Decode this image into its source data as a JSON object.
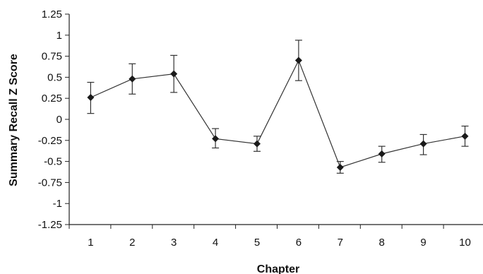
{
  "chart_data": {
    "type": "line",
    "title": "",
    "xlabel": "Chapter",
    "ylabel": "Summary Recall Z Score",
    "categories": [
      "1",
      "2",
      "3",
      "4",
      "5",
      "6",
      "7",
      "8",
      "9",
      "10"
    ],
    "series": [
      {
        "values": [
          0.26,
          0.48,
          0.54,
          -0.23,
          -0.29,
          0.7,
          -0.57,
          -0.41,
          -0.29,
          -0.2
        ],
        "error_upper": [
          0.44,
          0.66,
          0.76,
          -0.11,
          -0.2,
          0.94,
          -0.5,
          -0.32,
          -0.18,
          -0.08
        ],
        "error_lower": [
          0.07,
          0.3,
          0.32,
          -0.34,
          -0.38,
          0.46,
          -0.64,
          -0.51,
          -0.42,
          -0.32
        ]
      }
    ],
    "ylim": [
      -1.25,
      1.25
    ],
    "yticks": [
      "1.25",
      "1",
      "0.75",
      "0.5",
      "0.25",
      "0",
      "-0.25",
      "-0.5",
      "-0.75",
      "-1",
      "-1.25"
    ],
    "grid": false,
    "colors": {
      "line": "#333333",
      "marker": "#1a1a1a",
      "axis": "#222222"
    }
  }
}
